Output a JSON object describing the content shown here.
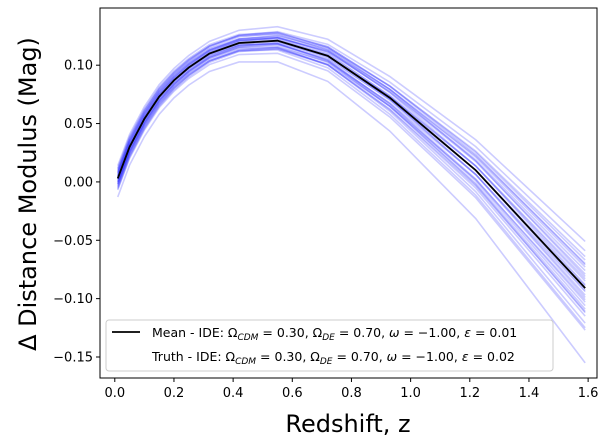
{
  "chart_data": {
    "type": "line",
    "xlabel": "Redshift, z",
    "ylabel": "Δ Distance Modulus (Mag)",
    "xlim": [
      -0.05,
      1.63
    ],
    "ylim": [
      -0.168,
      0.149
    ],
    "xticks": [
      0.0,
      0.2,
      0.4,
      0.6,
      0.8,
      1.0,
      1.2,
      1.4,
      1.6
    ],
    "xtick_labels": [
      "0.0",
      "0.2",
      "0.4",
      "0.6",
      "0.8",
      "1.0",
      "1.2",
      "1.4",
      "1.6"
    ],
    "yticks": [
      0.1,
      0.05,
      0.0,
      -0.05,
      -0.1,
      -0.15
    ],
    "ytick_labels": [
      "0.10",
      "0.05",
      "0.00",
      "−0.05",
      "−0.10",
      "−0.15"
    ],
    "grid": false,
    "legend_position": "lower-left",
    "x": [
      0.01,
      0.05,
      0.1,
      0.15,
      0.2,
      0.25,
      0.32,
      0.42,
      0.55,
      0.72,
      0.93,
      1.22,
      1.59
    ],
    "mean_series": {
      "name": "Mean - IDE: Ω_CDM = 0.30, Ω_DE = 0.70, ω = −1.00, ε = 0.01",
      "color": "#000000",
      "values": [
        0.003,
        0.03,
        0.054,
        0.073,
        0.087,
        0.098,
        0.11,
        0.119,
        0.121,
        0.108,
        0.072,
        0.01,
        -0.091
      ]
    },
    "truth_series": {
      "name": "Truth - IDE: Ω_CDM = 0.30, Ω_DE = 0.70, ω = −1.00, ε = 0.02",
      "color": "#ffffff"
    },
    "realizations": {
      "color": "#0000ff",
      "opacity": 0.2,
      "offsets": [
        {
          "a": 0.0,
          "b": 0.0
        },
        {
          "a": 0.0,
          "b": 0.006
        },
        {
          "a": 0.0,
          "b": -0.006
        },
        {
          "a": 0.002,
          "b": 0.012
        },
        {
          "a": -0.002,
          "b": -0.012
        },
        {
          "a": 0.003,
          "b": 0.018
        },
        {
          "a": -0.003,
          "b": -0.018
        },
        {
          "a": 0.005,
          "b": 0.024
        },
        {
          "a": -0.005,
          "b": -0.024
        },
        {
          "a": 0.006,
          "b": 0.032
        },
        {
          "a": -0.006,
          "b": -0.034
        },
        {
          "a": -0.01,
          "b": -0.036
        },
        {
          "a": 0.011,
          "b": 0.04
        },
        {
          "a": -0.016,
          "b": -0.064
        },
        {
          "a": 0.008,
          "b": 0.003
        },
        {
          "a": -0.008,
          "b": -0.003
        },
        {
          "a": 0.004,
          "b": -0.008
        },
        {
          "a": -0.004,
          "b": 0.008
        },
        {
          "a": 0.001,
          "b": 0.015
        },
        {
          "a": -0.001,
          "b": -0.015
        },
        {
          "a": 0.007,
          "b": 0.02
        },
        {
          "a": -0.007,
          "b": -0.02
        },
        {
          "a": 0.002,
          "b": 0.027
        },
        {
          "a": -0.003,
          "b": -0.03
        },
        {
          "a": 0.009,
          "b": 0.01
        },
        {
          "a": -0.009,
          "b": -0.01
        },
        {
          "a": 0.005,
          "b": -0.002
        },
        {
          "a": -0.005,
          "b": 0.002
        },
        {
          "a": 0.0,
          "b": 0.021
        },
        {
          "a": 0.0,
          "b": -0.021
        }
      ]
    }
  }
}
